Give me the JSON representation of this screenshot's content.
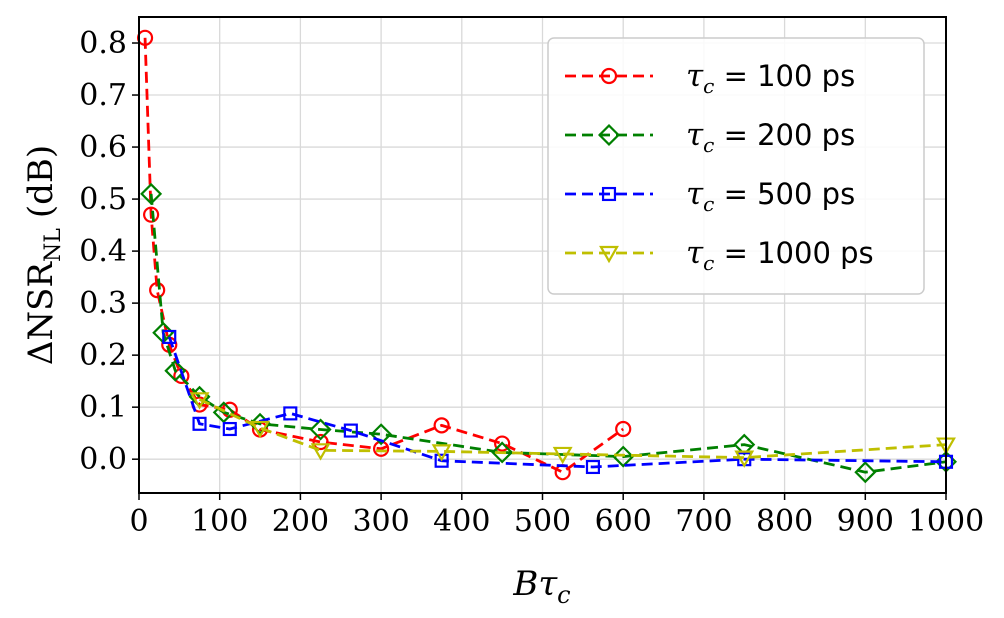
{
  "chart_data": {
    "type": "line",
    "xlabel": "Bτ",
    "xlabel_sub": "c",
    "ylabel": "ΔNSR",
    "ylabel_sub": "NL",
    "ylabel_unit": "(dB)",
    "xlim": [
      0,
      1000
    ],
    "ylim": [
      -0.065,
      0.85
    ],
    "xticks": [
      "0",
      "100",
      "200",
      "300",
      "400",
      "500",
      "600",
      "700",
      "800",
      "900",
      "1000"
    ],
    "yticks": [
      "0.0",
      "0.1",
      "0.2",
      "0.3",
      "0.4",
      "0.5",
      "0.6",
      "0.7",
      "0.8"
    ],
    "grid": true,
    "legend_position": "top-right",
    "series": [
      {
        "name": "τc = 100 ps",
        "legend_symbol": "τ",
        "legend_sub": "c",
        "legend_rest": " = 100 ps",
        "color": "#ff0000",
        "marker": "circle",
        "x": [
          7.5,
          15,
          22.5,
          37.5,
          52.5,
          75,
          112.5,
          150,
          225,
          300,
          375,
          450,
          525,
          600
        ],
        "y": [
          0.81,
          0.47,
          0.325,
          0.22,
          0.16,
          0.105,
          0.095,
          0.057,
          0.033,
          0.02,
          0.065,
          0.03,
          -0.025,
          0.058
        ]
      },
      {
        "name": "τc = 200 ps",
        "legend_symbol": "τ",
        "legend_sub": "c",
        "legend_rest": " = 200 ps",
        "color": "#008000",
        "marker": "diamond",
        "x": [
          15,
          30,
          45,
          75,
          105,
          150,
          225,
          300,
          450,
          600,
          750,
          900,
          1000
        ],
        "y": [
          0.51,
          0.243,
          0.17,
          0.12,
          0.09,
          0.068,
          0.057,
          0.048,
          0.013,
          0.005,
          0.028,
          -0.025,
          -0.005
        ]
      },
      {
        "name": "τc = 500 ps",
        "legend_symbol": "τ",
        "legend_sub": "c",
        "legend_rest": " = 500 ps",
        "color": "#0000ff",
        "marker": "square",
        "x": [
          37.5,
          75,
          112.5,
          187.5,
          262.5,
          375,
          562.5,
          750,
          1000
        ],
        "y": [
          0.235,
          0.068,
          0.058,
          0.088,
          0.055,
          -0.003,
          -0.015,
          0.0,
          -0.005
        ]
      },
      {
        "name": "τc = 1000 ps",
        "legend_symbol": "τ",
        "legend_sub": "c",
        "legend_rest": " = 1000 ps",
        "color": "#bfbf00",
        "marker": "triangle-down",
        "x": [
          75,
          150,
          225,
          375,
          525,
          750,
          1000
        ],
        "y": [
          0.115,
          0.06,
          0.017,
          0.015,
          0.01,
          0.003,
          0.028
        ]
      }
    ]
  }
}
